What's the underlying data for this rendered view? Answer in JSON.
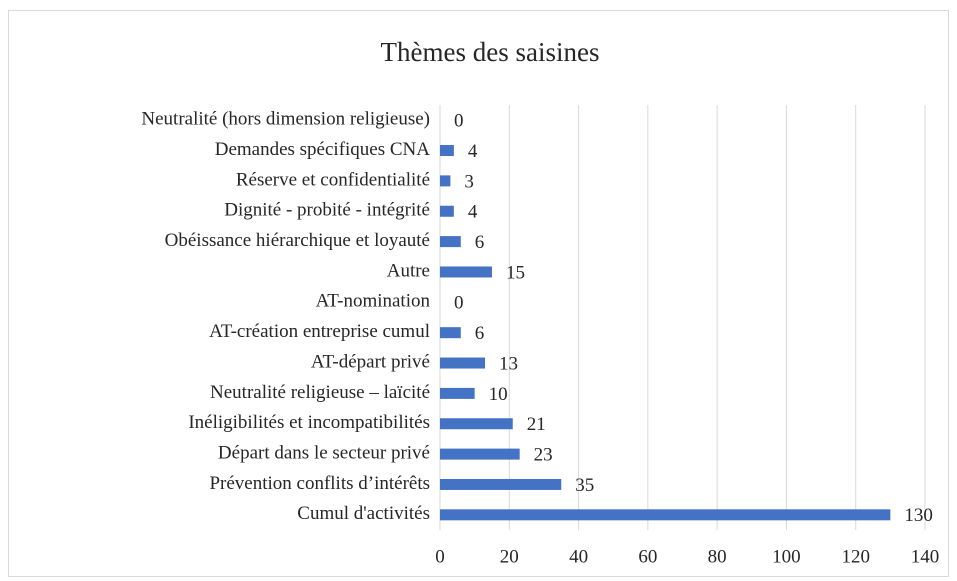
{
  "chart_data": {
    "type": "barh",
    "title": "Thèmes des saisines",
    "categories": [
      "Neutralité (hors dimension religieuse)",
      "Demandes spécifiques CNA",
      "Réserve et confidentialité",
      "Dignité - probité - intégrité",
      "Obéissance hiérarchique et loyauté",
      "Autre",
      "AT-nomination",
      "AT-création entreprise cumul",
      "AT-départ privé",
      "Neutralité religieuse – laïcité",
      "Inéligibilités et incompatibilités",
      "Départ dans le secteur privé",
      "Prévention conflits d’intérêts",
      "Cumul d'activités"
    ],
    "values": [
      0,
      4,
      3,
      4,
      6,
      15,
      0,
      6,
      13,
      10,
      21,
      23,
      35,
      130
    ],
    "color": "#4472c4",
    "xlim": [
      0,
      140
    ],
    "xticks": [
      0,
      20,
      40,
      60,
      80,
      100,
      120,
      140
    ],
    "grid": true
  }
}
